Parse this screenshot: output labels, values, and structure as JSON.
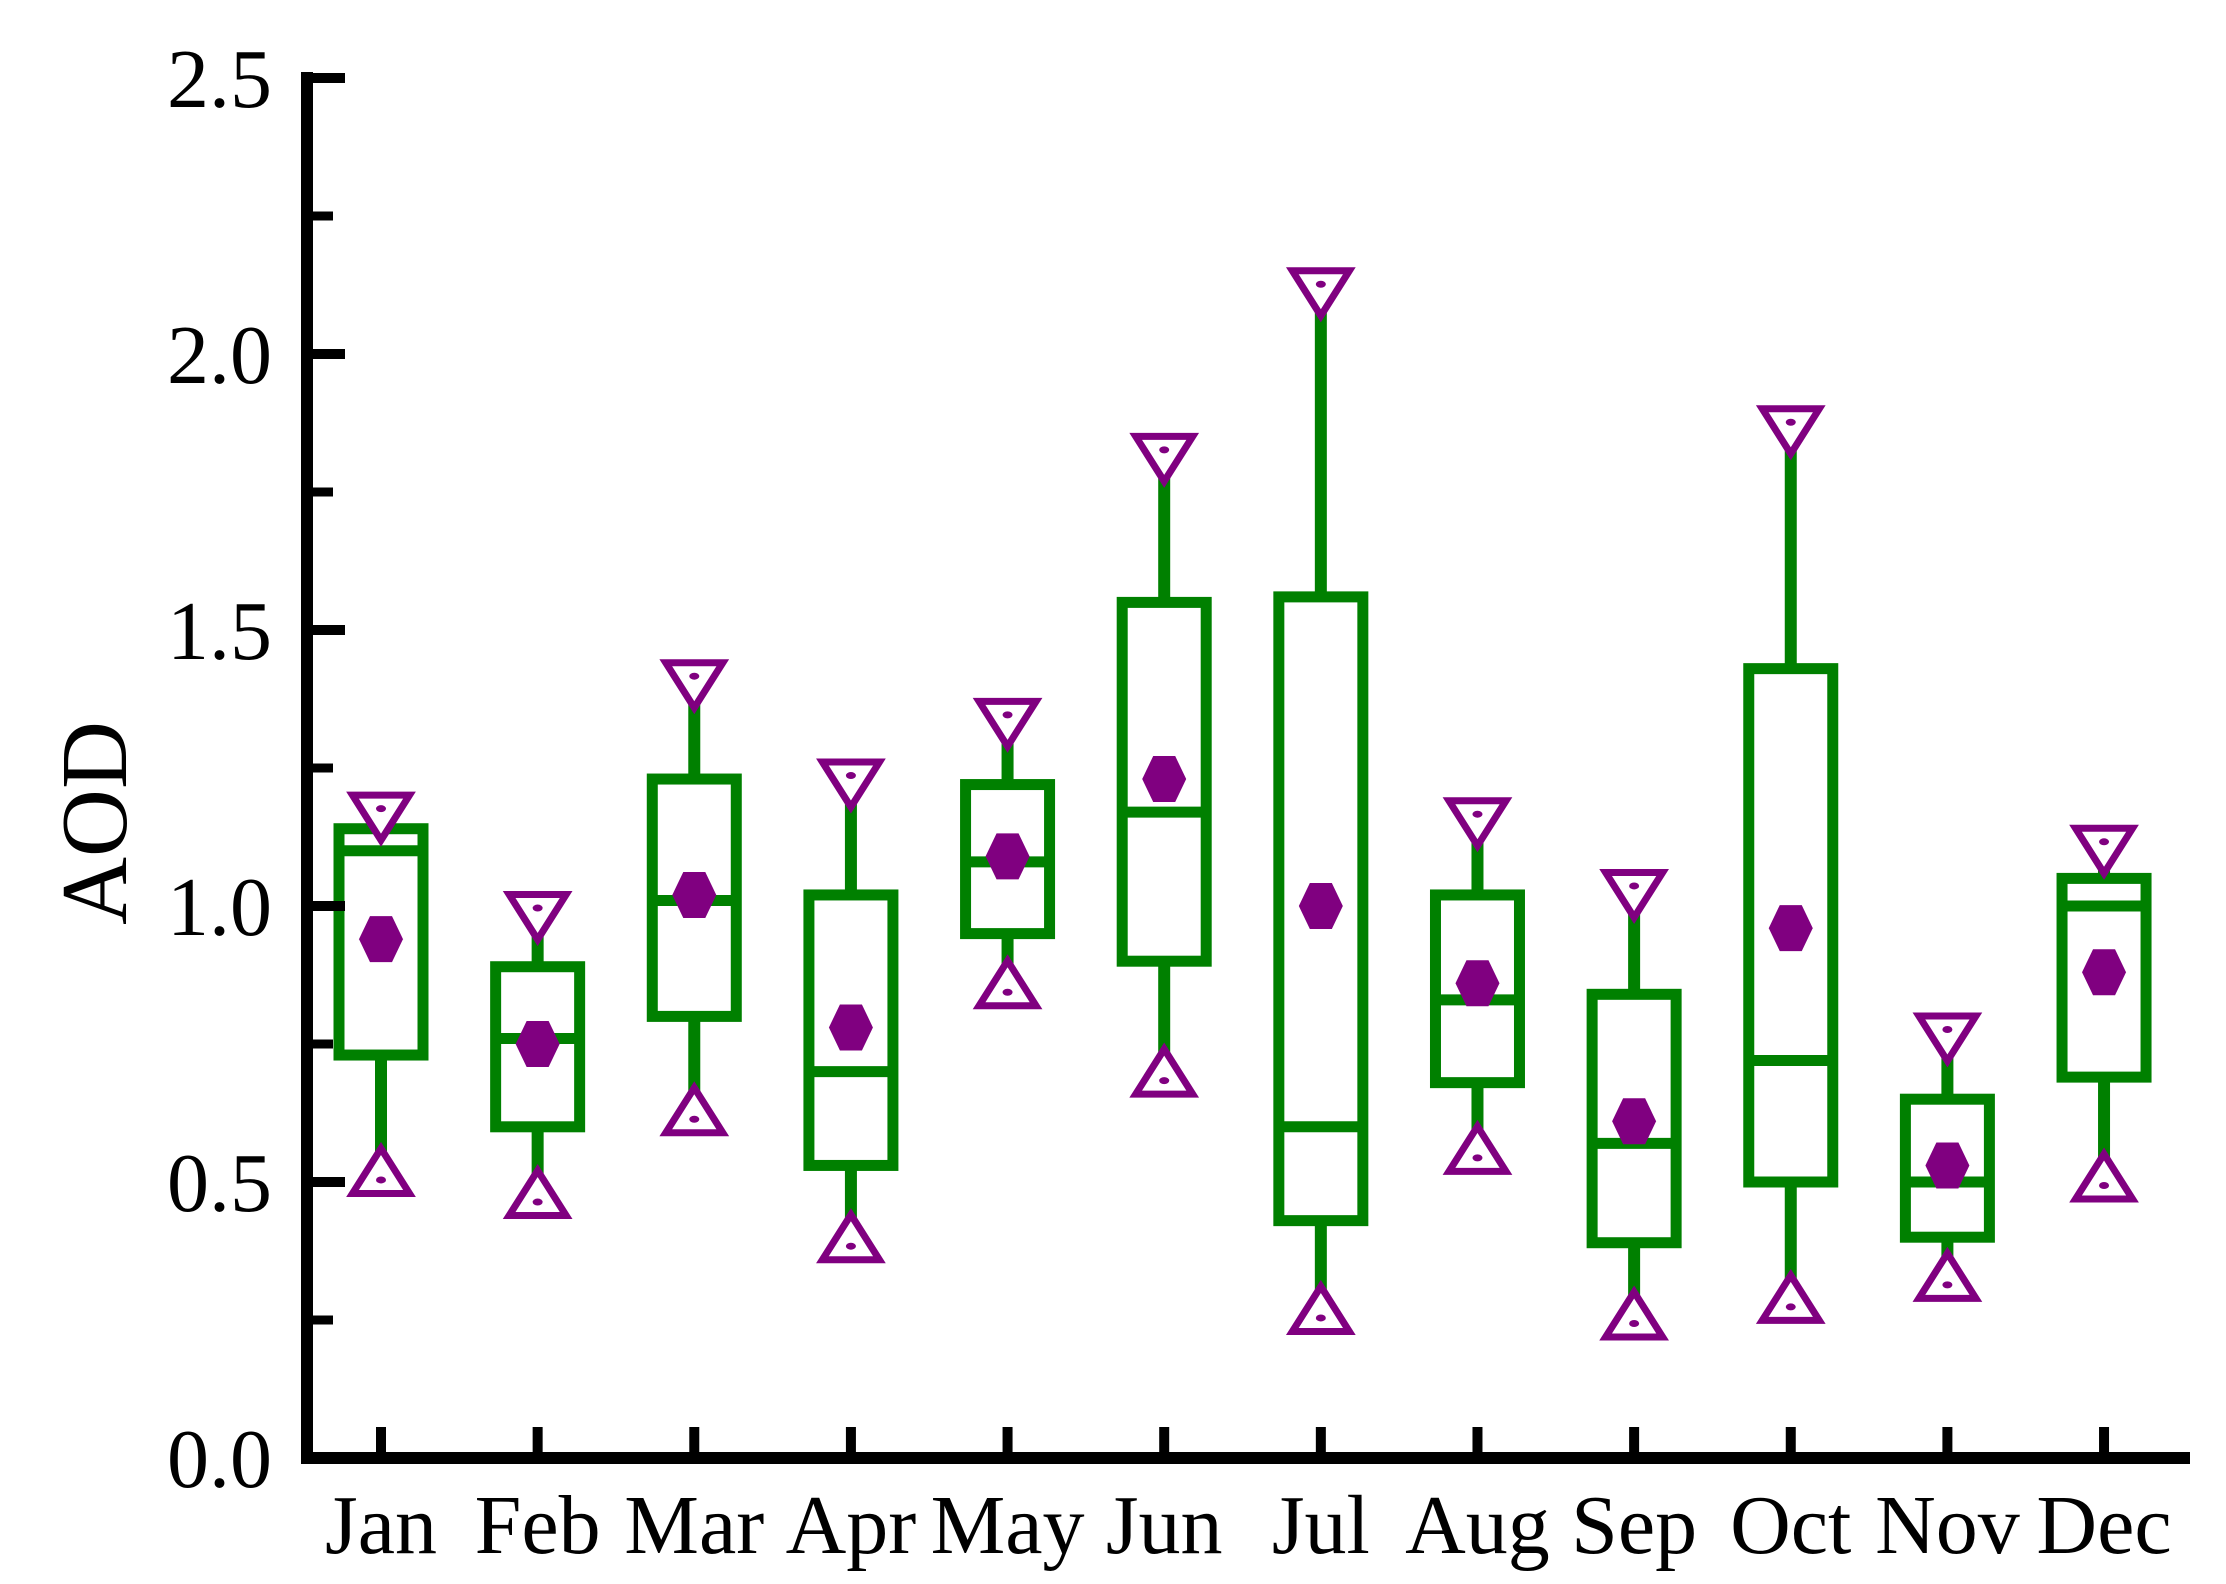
{
  "chart_data": {
    "type": "box",
    "title": "",
    "ylabel": "AOD",
    "xlabel": "",
    "ylim": [
      0.0,
      2.5
    ],
    "y_major_step": 0.5,
    "y_minor_step": 0.25,
    "y_major_tick_labels": [
      "0.0",
      "0.5",
      "1.0",
      "1.5",
      "2.0",
      "2.5"
    ],
    "grid": false,
    "legend": false,
    "categories": [
      "Jan",
      "Feb",
      "Mar",
      "Apr",
      "May",
      "Jun",
      "Jul",
      "Aug",
      "Sep",
      "Oct",
      "Nov",
      "Dec"
    ],
    "boxes": [
      {
        "month": "Jan",
        "min": 0.52,
        "q1": 0.73,
        "median": 1.1,
        "q3": 1.14,
        "max": 1.16,
        "mean": 0.94
      },
      {
        "month": "Feb",
        "min": 0.48,
        "q1": 0.6,
        "median": 0.76,
        "q3": 0.89,
        "max": 0.98,
        "mean": 0.75
      },
      {
        "month": "Mar",
        "min": 0.63,
        "q1": 0.8,
        "median": 1.01,
        "q3": 1.23,
        "max": 1.4,
        "mean": 1.02
      },
      {
        "month": "Apr",
        "min": 0.4,
        "q1": 0.53,
        "median": 0.7,
        "q3": 1.02,
        "max": 1.22,
        "mean": 0.78
      },
      {
        "month": "May",
        "min": 0.86,
        "q1": 0.95,
        "median": 1.08,
        "q3": 1.22,
        "max": 1.33,
        "mean": 1.09
      },
      {
        "month": "Jun",
        "min": 0.7,
        "q1": 0.9,
        "median": 1.17,
        "q3": 1.55,
        "max": 1.81,
        "mean": 1.23
      },
      {
        "month": "Jul",
        "min": 0.27,
        "q1": 0.43,
        "median": 0.6,
        "q3": 1.56,
        "max": 2.11,
        "mean": 1.0
      },
      {
        "month": "Aug",
        "min": 0.56,
        "q1": 0.68,
        "median": 0.83,
        "q3": 1.02,
        "max": 1.15,
        "mean": 0.86
      },
      {
        "month": "Sep",
        "min": 0.26,
        "q1": 0.39,
        "median": 0.57,
        "q3": 0.84,
        "max": 1.02,
        "mean": 0.61
      },
      {
        "month": "Oct",
        "min": 0.29,
        "q1": 0.5,
        "median": 0.72,
        "q3": 1.43,
        "max": 1.86,
        "mean": 0.96
      },
      {
        "month": "Nov",
        "min": 0.33,
        "q1": 0.4,
        "median": 0.5,
        "q3": 0.65,
        "max": 0.76,
        "mean": 0.53
      },
      {
        "month": "Dec",
        "min": 0.51,
        "q1": 0.69,
        "median": 1.0,
        "q3": 1.05,
        "max": 1.1,
        "mean": 0.88
      }
    ],
    "marker_semantics": {
      "filled_hexagon": "mean",
      "open_down_triangle": "maximum",
      "open_up_triangle": "minimum",
      "box": "25th-75th percentile",
      "line_in_box": "median"
    },
    "colors": {
      "box": "#008000",
      "marker": "#800080",
      "axis": "#000000",
      "background": "#ffffff"
    }
  }
}
